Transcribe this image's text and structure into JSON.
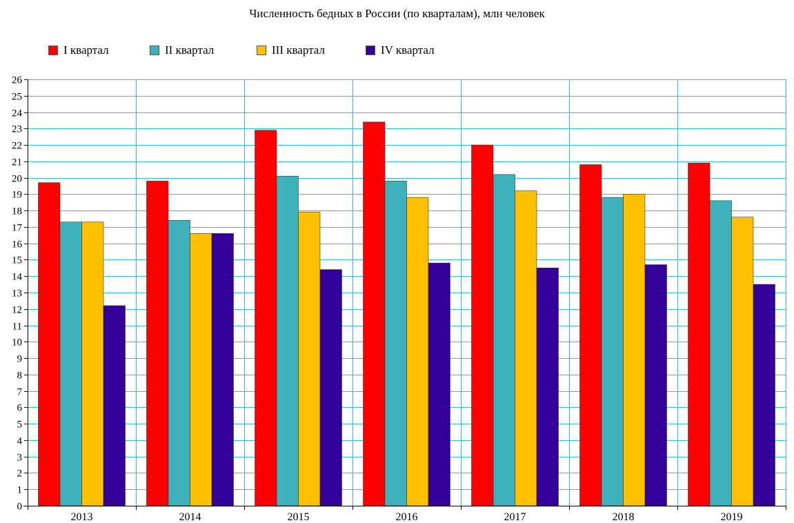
{
  "colors": {
    "grid": "#30bfd0",
    "axis": "#000000",
    "bar_border": "#333333"
  },
  "chart_data": {
    "type": "bar",
    "title": "Численность бедных в России (по кварталам), млн человек",
    "xlabel": "",
    "ylabel": "",
    "categories": [
      "2013",
      "2014",
      "2015",
      "2016",
      "2017",
      "2018",
      "2019"
    ],
    "series": [
      {
        "name": "I квартал",
        "color": "#ff0000",
        "values": [
          19.7,
          19.8,
          22.9,
          23.4,
          22.0,
          20.8,
          20.9
        ]
      },
      {
        "name": "II квартал",
        "color": "#3fb1bd",
        "values": [
          17.3,
          17.4,
          20.1,
          19.8,
          20.2,
          18.8,
          18.6
        ]
      },
      {
        "name": "III квартал",
        "color": "#ffc000",
        "values": [
          17.3,
          16.6,
          17.9,
          18.8,
          19.2,
          19.0,
          17.6
        ]
      },
      {
        "name": "IV квартал",
        "color": "#330099",
        "values": [
          12.2,
          16.6,
          14.4,
          14.8,
          14.5,
          14.7,
          13.5
        ]
      }
    ],
    "ylim": [
      0,
      26
    ],
    "yticks": [
      "0",
      "1",
      "2",
      "3",
      "4",
      "5",
      "6",
      "7",
      "8",
      "9",
      "10",
      "11",
      "12",
      "13",
      "14",
      "15",
      "16",
      "17",
      "18",
      "19",
      "20",
      "21",
      "22",
      "23",
      "24",
      "25",
      "26"
    ],
    "grid": true,
    "legend_position": "top-left"
  }
}
